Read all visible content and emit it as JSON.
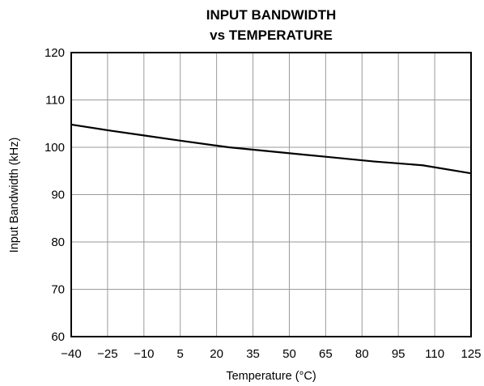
{
  "chart_data": {
    "type": "line",
    "title": [
      "INPUT BANDWIDTH",
      "vs TEMPERATURE"
    ],
    "xlabel": "Temperature (°C)",
    "ylabel": "Input Bandwidth (kHz)",
    "xlim": [
      -40,
      125
    ],
    "ylim": [
      60,
      120
    ],
    "xticks": [
      -40,
      -25,
      -10,
      5,
      20,
      35,
      50,
      65,
      80,
      95,
      110,
      125
    ],
    "xtick_labels": [
      "−40",
      "−25",
      "−10",
      "5",
      "20",
      "35",
      "50",
      "65",
      "80",
      "95",
      "110",
      "125"
    ],
    "yticks": [
      60,
      70,
      80,
      90,
      100,
      110,
      120
    ],
    "ytick_labels": [
      "60",
      "70",
      "80",
      "90",
      "100",
      "110",
      "120"
    ],
    "grid": true,
    "series": [
      {
        "x": [
          -40,
          -25,
          -10,
          5,
          25,
          45,
          65,
          85,
          105,
          125
        ],
        "y": [
          104.8,
          103.6,
          102.5,
          101.4,
          100.0,
          99.0,
          98.0,
          97.0,
          96.2,
          94.5
        ],
        "color": "#000000"
      }
    ]
  }
}
